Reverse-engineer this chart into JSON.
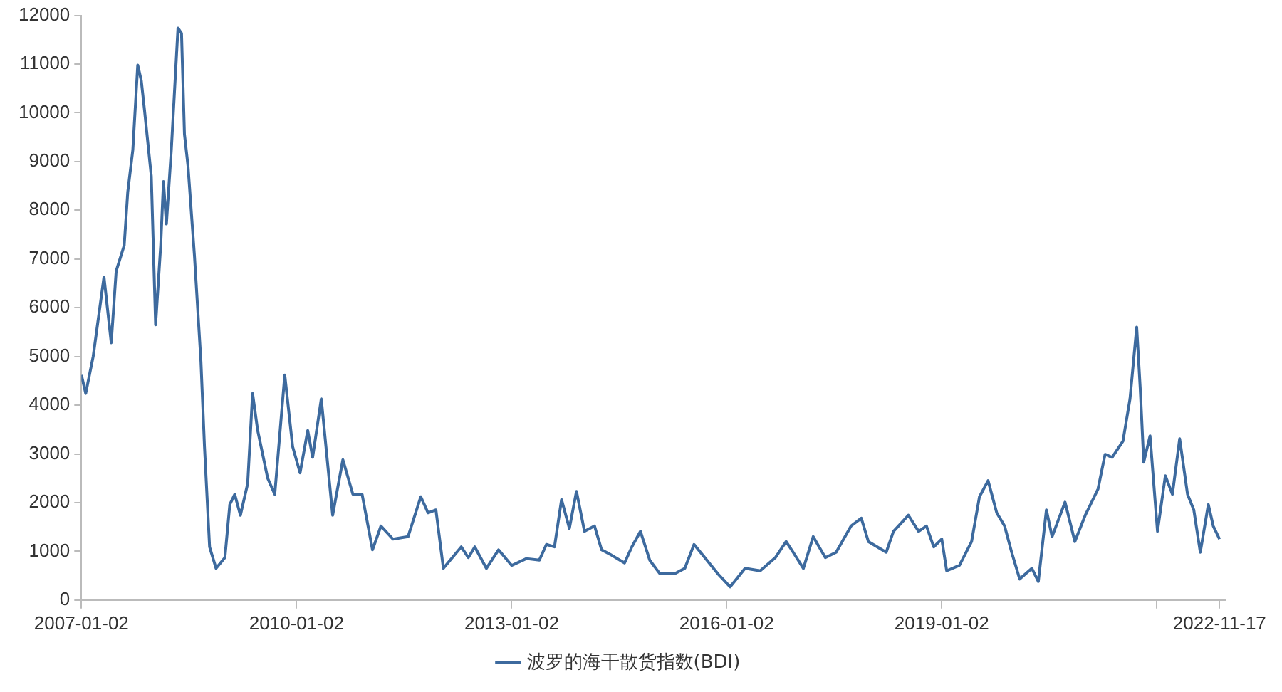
{
  "chart_data": {
    "type": "line",
    "x": [
      "2007-01-02",
      "2007-01-24",
      "2007-03-03",
      "2007-04-27",
      "2007-06-03",
      "2007-06-28",
      "2007-08-08",
      "2007-08-26",
      "2007-09-21",
      "2007-10-16",
      "2007-11-03",
      "2007-11-18",
      "2007-12-24",
      "2008-01-15",
      "2008-02-10",
      "2008-02-24",
      "2008-03-10",
      "2008-04-04",
      "2008-05-08",
      "2008-05-26",
      "2008-06-10",
      "2008-06-28",
      "2008-07-31",
      "2008-09-02",
      "2008-09-20",
      "2008-10-16",
      "2008-11-18",
      "2009-01-02",
      "2009-01-27",
      "2009-02-21",
      "2009-03-22",
      "2009-04-28",
      "2009-05-23",
      "2009-06-18",
      "2009-08-08",
      "2009-09-13",
      "2009-11-03",
      "2009-12-13",
      "2010-01-20",
      "2010-02-28",
      "2010-03-25",
      "2010-05-08",
      "2010-07-05",
      "2010-08-26",
      "2010-10-16",
      "2010-12-02",
      "2011-01-24",
      "2011-03-08",
      "2011-05-08",
      "2011-07-24",
      "2011-09-27",
      "2011-11-03",
      "2011-12-13",
      "2012-01-20",
      "2012-04-20",
      "2012-05-26",
      "2012-06-28",
      "2012-08-26",
      "2012-10-27",
      "2013-01-02",
      "2013-03-18",
      "2013-05-23",
      "2013-06-28",
      "2013-08-08",
      "2013-09-13",
      "2013-10-23",
      "2013-11-28",
      "2014-01-08",
      "2014-02-28",
      "2014-04-05",
      "2014-05-26",
      "2014-07-31",
      "2014-09-06",
      "2014-10-20",
      "2014-12-06",
      "2015-01-27",
      "2015-04-13",
      "2015-06-03",
      "2015-07-20",
      "2015-09-13",
      "2015-11-18",
      "2016-01-20",
      "2016-04-05",
      "2016-06-21",
      "2016-09-06",
      "2016-10-31",
      "2016-12-06",
      "2017-01-27",
      "2017-03-18",
      "2017-05-19",
      "2017-07-13",
      "2017-09-27",
      "2017-11-18",
      "2017-12-24",
      "2018-03-25",
      "2018-05-01",
      "2018-07-16",
      "2018-09-06",
      "2018-10-16",
      "2018-11-22",
      "2019-01-02",
      "2019-01-27",
      "2019-04-02",
      "2019-06-03",
      "2019-07-13",
      "2019-08-26",
      "2019-10-09",
      "2019-11-18",
      "2019-12-24",
      "2020-02-03",
      "2020-04-05",
      "2020-05-08",
      "2020-06-18",
      "2020-07-17",
      "2020-09-21",
      "2020-11-10",
      "2021-01-02",
      "2021-03-08",
      "2021-04-13",
      "2021-05-19",
      "2021-07-13",
      "2021-08-18",
      "2021-09-21",
      "2021-10-09",
      "2021-10-27",
      "2021-11-28",
      "2022-01-05",
      "2022-02-14",
      "2022-03-22",
      "2022-04-28",
      "2022-06-07",
      "2022-07-09",
      "2022-08-11",
      "2022-09-21",
      "2022-10-16",
      "2022-11-17"
    ],
    "series": [
      {
        "name": "波罗的海干散货指数(BDI)",
        "color": "#3d6a9e",
        "values": [
          4620,
          4240,
          5000,
          6630,
          5280,
          6750,
          7280,
          8370,
          9240,
          10980,
          10660,
          10110,
          8700,
          5650,
          7280,
          8590,
          7720,
          9240,
          11740,
          11630,
          9560,
          8910,
          7060,
          4890,
          3150,
          1090,
          650,
          870,
          1960,
          2170,
          1740,
          2390,
          4240,
          3480,
          2500,
          2170,
          4620,
          3150,
          2610,
          3480,
          2930,
          4130,
          1740,
          2880,
          2170,
          2170,
          1030,
          1520,
          1250,
          1300,
          2120,
          1790,
          1850,
          650,
          1090,
          870,
          1090,
          650,
          1030,
          710,
          850,
          820,
          1140,
          1090,
          2060,
          1470,
          2230,
          1410,
          1520,
          1030,
          920,
          760,
          1090,
          1410,
          820,
          540,
          540,
          650,
          1140,
          870,
          540,
          270,
          650,
          600,
          870,
          1200,
          980,
          650,
          1300,
          870,
          980,
          1520,
          1680,
          1200,
          980,
          1410,
          1740,
          1410,
          1520,
          1090,
          1250,
          600,
          710,
          1200,
          2120,
          2450,
          1790,
          1520,
          980,
          430,
          650,
          380,
          1850,
          1300,
          2010,
          1200,
          1740,
          2280,
          2990,
          2930,
          3260,
          4130,
          5600,
          4350,
          2830,
          3370,
          1410,
          2550,
          2170,
          3310,
          2170,
          1850,
          980,
          1960,
          1520,
          1250
        ]
      }
    ],
    "xlim": [
      "2007-01-02",
      "2022-12-15"
    ],
    "xticks": [
      "2007-01-02",
      "2010-01-02",
      "2013-01-02",
      "2016-01-02",
      "2019-01-02",
      {
        "value": "2022-01-02",
        "label": null
      },
      "2022-11-17"
    ],
    "ylim": [
      0,
      12000
    ],
    "yticks": [
      0,
      1000,
      2000,
      3000,
      4000,
      5000,
      6000,
      7000,
      8000,
      9000,
      10000,
      11000,
      12000
    ],
    "grid": false,
    "legend": "bottom",
    "marker": "none",
    "line_style": "solid"
  }
}
